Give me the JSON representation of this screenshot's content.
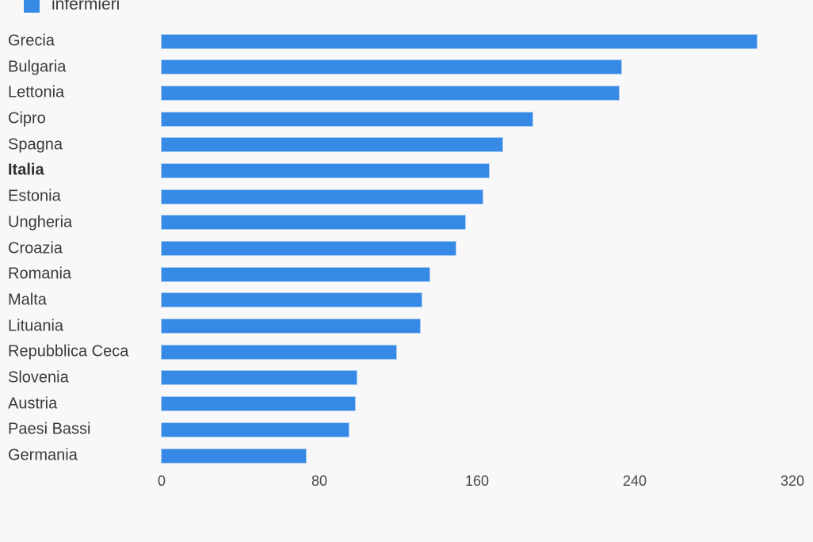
{
  "chart": {
    "background": "#f8f8f8",
    "bar_color": "#3789e6",
    "bar_outline_color": "#aacdf2",
    "label_color": "#3a3a3a",
    "axis_label_color": "#4a4a4a"
  },
  "legend": {
    "label": "infermieri"
  },
  "chart_data": {
    "type": "bar",
    "orientation": "horizontal",
    "title": "",
    "series_name": "infermieri",
    "categories": [
      "Grecia",
      "Bulgaria",
      "Lettonia",
      "Cipro",
      "Spagna",
      "Italia",
      "Estonia",
      "Ungheria",
      "Croazia",
      "Romania",
      "Malta",
      "Lituania",
      "Repubblica Ceca",
      "Slovenia",
      "Austria",
      "Paesi Bassi",
      "Germania"
    ],
    "values": [
      302,
      233,
      232,
      188,
      173,
      166,
      163,
      154,
      149,
      136,
      132,
      131,
      119,
      99,
      98,
      95,
      73
    ],
    "highlighted_category": "Italia",
    "xlabel": "",
    "ylabel": "",
    "xlim": [
      0,
      320
    ],
    "x_ticks": [
      0,
      80,
      160,
      240,
      320
    ],
    "grid": false,
    "legend_position": "top-left"
  }
}
